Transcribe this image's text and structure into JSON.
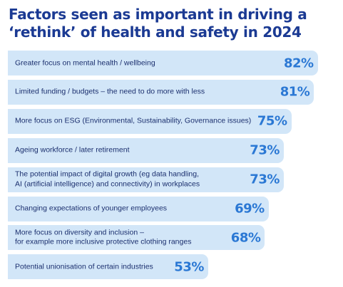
{
  "colors": {
    "title": "#1b3a93",
    "bar_fill": "#d2e6f8",
    "label_text": "#1b2f6e",
    "value_text": "#2b78d4",
    "background": "#ffffff"
  },
  "chart_data": {
    "type": "bar",
    "orientation": "horizontal",
    "title_lines": [
      "Factors seen as important in driving a",
      "‘rethink’ of health and safety in 2024"
    ],
    "title": "Factors seen as important in driving a ‘rethink’ of health and safety in 2024",
    "unit": "%",
    "xlim": [
      0,
      100
    ],
    "grid": false,
    "legend": "none",
    "categories": [
      [
        "Greater focus on mental health / wellbeing"
      ],
      [
        "Limited funding / budgets – the need to do more with less"
      ],
      [
        "More focus on ESG (Environmental, Sustainability, Governance issues)"
      ],
      [
        "Ageing workforce / later retirement"
      ],
      [
        "The potential impact of digital growth (eg data handling,",
        "AI (artificial intelligence) and connectivity) in workplaces"
      ],
      [
        "Changing expectations of younger employees"
      ],
      [
        "More focus on diversity and inclusion –",
        "for example more inclusive protective clothing ranges"
      ],
      [
        "Potential unionisation of certain industries"
      ]
    ],
    "values": [
      82,
      81,
      75,
      73,
      73,
      69,
      68,
      53
    ],
    "value_labels": [
      "82%",
      "81%",
      "75%",
      "73%",
      "73%",
      "69%",
      "68%",
      "53%"
    ]
  }
}
